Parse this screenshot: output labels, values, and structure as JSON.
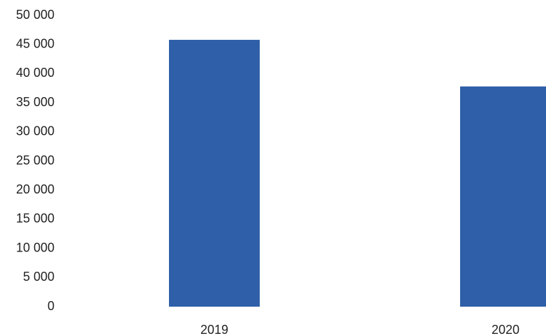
{
  "chart_data": {
    "type": "bar",
    "categories": [
      "2019",
      "2020"
    ],
    "values": [
      45800,
      37800
    ],
    "ylim": [
      0,
      50000
    ],
    "yticks": [
      "0",
      "5 000",
      "10 000",
      "15 000",
      "20 000",
      "25 000",
      "30 000",
      "35 000",
      "40 000",
      "45 000",
      "50 000"
    ],
    "grid": false,
    "legend": "none",
    "colors": {
      "bar": "#2e5fa8",
      "text": "#222222"
    }
  }
}
